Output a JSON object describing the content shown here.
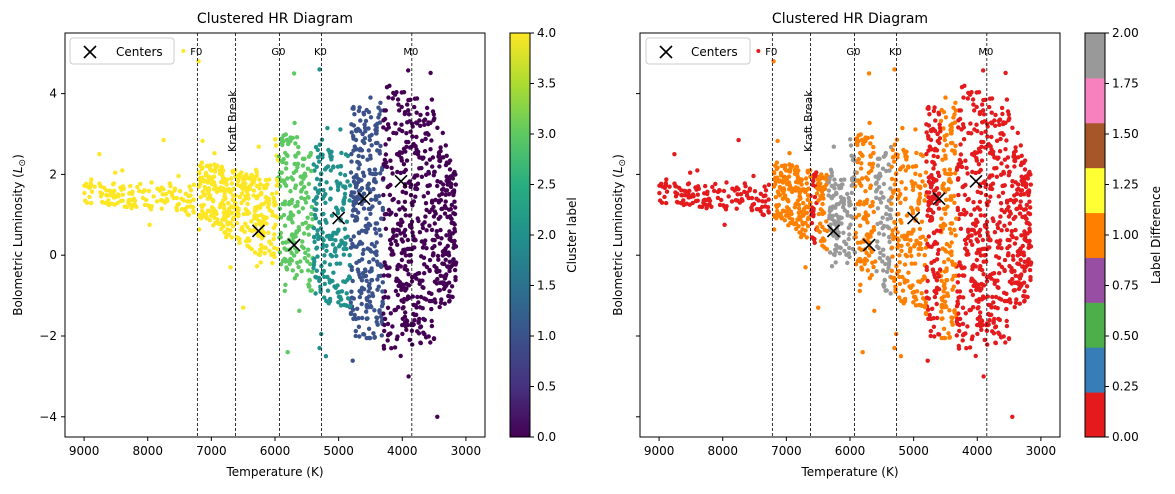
{
  "figure": {
    "panels": [
      {
        "title": "Clustered HR Diagram",
        "xlabel": "Temperature (K)",
        "ylabel": "Bolometric Luminosity ($L_{\\odot}$)",
        "ylabel_prefix": "Bolometric Luminosity (",
        "ylabel_sym": "L",
        "ylabel_sub": "⊙",
        "ylabel_suffix": ")",
        "legend_label": "Centers",
        "annotation": "Kraft Break",
        "colorbar_label": "Cluster label",
        "colorbar_ticks": [
          "0.0",
          "0.5",
          "1.0",
          "1.5",
          "2.0",
          "2.5",
          "3.0",
          "3.5",
          "4.0"
        ]
      },
      {
        "title": "Clustered HR Diagram",
        "xlabel": "Temperature (K)",
        "legend_label": "Centers",
        "annotation": "Kraft Break",
        "colorbar_label": "Label Difference",
        "colorbar_ticks": [
          "0.00",
          "0.25",
          "0.50",
          "0.75",
          "1.00",
          "1.25",
          "1.50",
          "1.75",
          "2.00"
        ]
      }
    ]
  },
  "chart_data": [
    {
      "type": "scatter",
      "title": "Clustered HR Diagram",
      "xlabel": "Temperature (K)",
      "ylabel": "Bolometric Luminosity ($L_{\\odot}$)",
      "xlim": [
        9300,
        2700
      ],
      "ylim": [
        -4.5,
        5.5
      ],
      "x_inverted": true,
      "x_ticks": [
        9000,
        8000,
        7000,
        6000,
        5000,
        4000,
        3000
      ],
      "y_ticks": [
        -4,
        -2,
        0,
        2,
        4
      ],
      "colormap": "viridis",
      "color_range": [
        0,
        4
      ],
      "colorbar_label": "Cluster label",
      "colorbar_ticks": [
        0.0,
        0.5,
        1.0,
        1.5,
        2.0,
        2.5,
        3.0,
        3.5,
        4.0
      ],
      "legend": {
        "entries": [
          "Centers"
        ],
        "placement": "upper-left"
      },
      "clusters": [
        {
          "label": 4,
          "color": "#fde725",
          "t_range": [
            9000,
            6620
          ]
        },
        {
          "label": 3,
          "color": "#5ec962",
          "t_range": [
            5950,
            5400
          ]
        },
        {
          "label": 2,
          "color": "#21918c",
          "t_range": [
            5400,
            4820
          ]
        },
        {
          "label": 1,
          "color": "#3b528b",
          "t_range": [
            4820,
            4300
          ]
        },
        {
          "label": 0,
          "color": "#440154",
          "t_range": [
            4300,
            3150
          ]
        }
      ],
      "centers": [
        {
          "x": 6260,
          "y": 0.6
        },
        {
          "x": 5700,
          "y": 0.25
        },
        {
          "x": 5000,
          "y": 0.92
        },
        {
          "x": 4600,
          "y": 1.4
        },
        {
          "x": 4020,
          "y": 1.83
        }
      ],
      "vlines": [
        {
          "x": 7220,
          "label": "F0"
        },
        {
          "x": 6620,
          "label": "Kraft Break"
        },
        {
          "x": 5930,
          "label": "G0"
        },
        {
          "x": 5270,
          "label": "K0"
        },
        {
          "x": 3850,
          "label": "M0"
        }
      ]
    },
    {
      "type": "scatter",
      "title": "Clustered HR Diagram",
      "xlabel": "Temperature (K)",
      "xlim": [
        9300,
        2700
      ],
      "ylim": [
        -4.5,
        5.5
      ],
      "x_inverted": true,
      "x_ticks": [
        9000,
        8000,
        7000,
        6000,
        5000,
        4000,
        3000
      ],
      "colormap": "Set1",
      "color_range": [
        0,
        2
      ],
      "colorbar_label": "Label Difference",
      "colorbar_ticks": [
        0.0,
        0.25,
        0.5,
        0.75,
        1.0,
        1.25,
        1.5,
        1.75,
        2.0
      ],
      "colorbar_colors": [
        "#e41a1c",
        "#377eb8",
        "#4daf4a",
        "#984ea3",
        "#ff7f00",
        "#ffff33",
        "#a65628",
        "#f781bf",
        "#999999"
      ],
      "legend": {
        "entries": [
          "Centers"
        ],
        "placement": "upper-left"
      },
      "bands": [
        {
          "value": 0,
          "color": "#e41a1c",
          "t_range": [
            9000,
            7220
          ]
        },
        {
          "value": 1,
          "color": "#ff7f00",
          "t_range": [
            7220,
            6620
          ]
        },
        {
          "value": 0,
          "color": "#e41a1c",
          "t_range": [
            6620,
            6520
          ]
        },
        {
          "value": 1,
          "color": "#ff7f00",
          "t_range": [
            6520,
            6350
          ]
        },
        {
          "value": 2,
          "color": "#999999",
          "t_range": [
            6350,
            5920
          ]
        },
        {
          "value": 1,
          "color": "#ff7f00",
          "t_range": [
            5920,
            5600
          ]
        },
        {
          "value": 2,
          "color": "#999999",
          "t_range": [
            5600,
            5350
          ]
        },
        {
          "value": 1,
          "color": "#ff7f00",
          "t_range": [
            5350,
            4800
          ]
        },
        {
          "value": 0,
          "color": "#e41a1c",
          "t_range": [
            4800,
            4580
          ]
        },
        {
          "value": 1,
          "color": "#ff7f00",
          "t_range": [
            4580,
            4330
          ]
        },
        {
          "value": 0,
          "color": "#e41a1c",
          "t_range": [
            4330,
            3150
          ]
        }
      ],
      "centers": [
        {
          "x": 6260,
          "y": 0.6
        },
        {
          "x": 5700,
          "y": 0.25
        },
        {
          "x": 5000,
          "y": 0.92
        },
        {
          "x": 4600,
          "y": 1.4
        },
        {
          "x": 4020,
          "y": 1.83
        }
      ],
      "vlines": [
        {
          "x": 7220,
          "label": "F0"
        },
        {
          "x": 6620,
          "label": "Kraft Break"
        },
        {
          "x": 5930,
          "label": "G0"
        },
        {
          "x": 5270,
          "label": "K0"
        },
        {
          "x": 3850,
          "label": "M0"
        }
      ]
    }
  ]
}
